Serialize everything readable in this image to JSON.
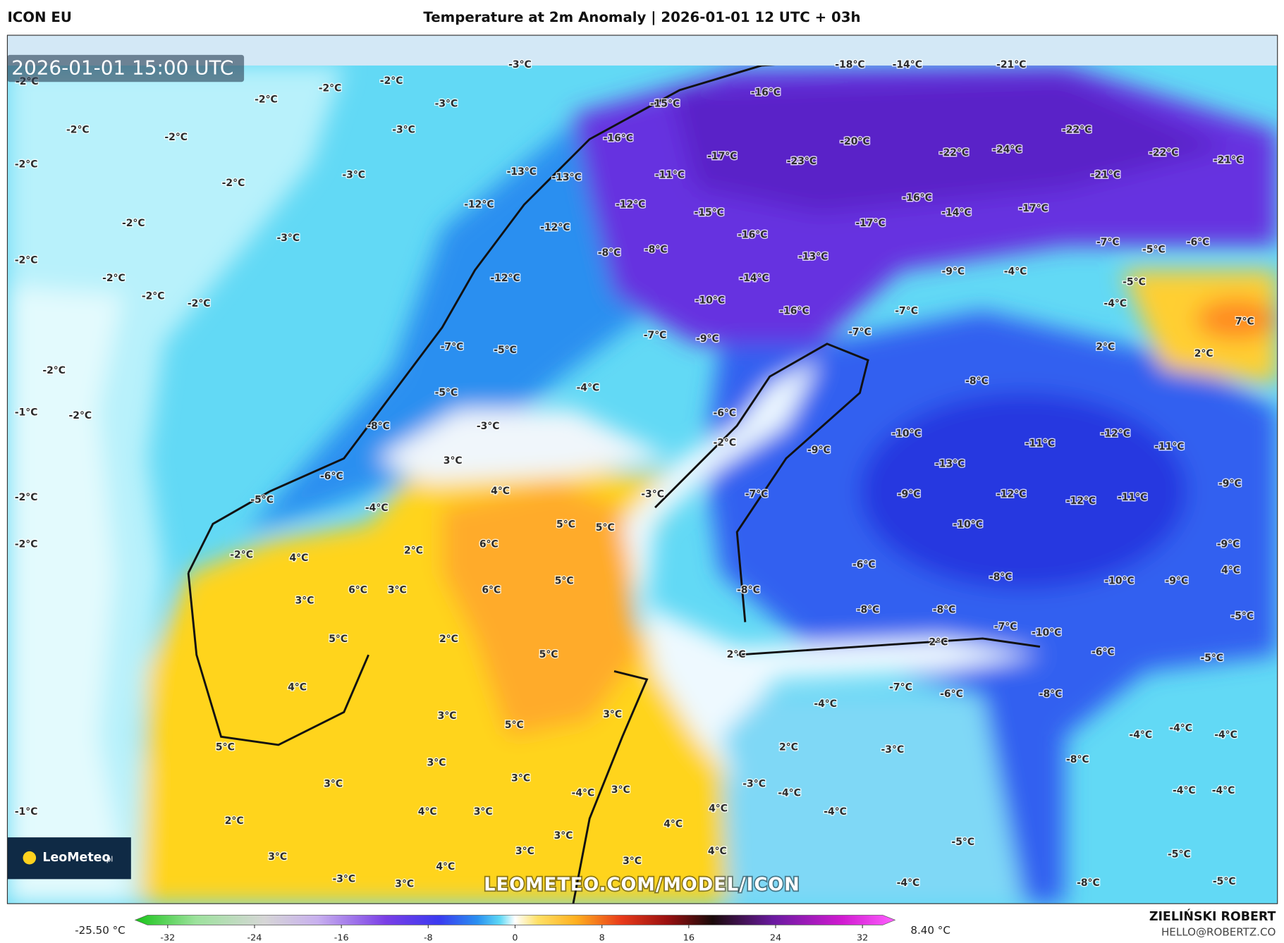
{
  "header": {
    "model": "ICON EU",
    "title": "Temperature at 2m Anomaly | 2026-01-01 12 UTC + 03h"
  },
  "map": {
    "timestamp": "2026-01-01 15:00 UTC",
    "watermark": "LEOMETEO.COM/MODEL/ICON",
    "logo": {
      "name": "LeoMeteo",
      "suffix": ".pl"
    },
    "labels": [
      "-2°C",
      "-2°C",
      "-2°C",
      "-2°C",
      "-2°C",
      "-2°C",
      "-2°C",
      "-2°C",
      "-2°C",
      "-2°C",
      "-2°C",
      "-2°C",
      "-2°C",
      "-2°C",
      "-2°C",
      "-2°C",
      "-2°C",
      "-1°C",
      "-1°C",
      "-3°C",
      "-3°C",
      "-3°C",
      "-3°C",
      "-3°C",
      "-18°C",
      "-14°C",
      "-21°C",
      "-15°C",
      "-16°C",
      "-16°C",
      "-20°C",
      "-22°C",
      "-24°C",
      "-22°C",
      "-22°C",
      "-21°C",
      "-13°C",
      "-13°C",
      "-11°C",
      "-17°C",
      "-23°C",
      "-21°C",
      "-12°C",
      "-12°C",
      "-15°C",
      "-16°C",
      "-14°C",
      "-17°C",
      "-12°C",
      "-16°C",
      "-17°C",
      "-7°C",
      "-5°C",
      "-6°C",
      "-8°C",
      "-8°C",
      "-13°C",
      "-9°C",
      "-4°C",
      "-12°C",
      "-14°C",
      "-5°C",
      "-10°C",
      "-16°C",
      "-7°C",
      "-4°C",
      "-7°C",
      "-9°C",
      "-7°C",
      "7°C",
      "-7°C",
      "-5°C",
      "2°C",
      "2°C",
      "-8°C",
      "-4°C",
      "-5°C",
      "-6°C",
      "-8°C",
      "-3°C",
      "-10°C",
      "-12°C",
      "-11°C",
      "-11°C",
      "-9°C",
      "-2°C",
      "-6°C",
      "3°C",
      "-13°C",
      "-5°C",
      "4°C",
      "-3°C",
      "-7°C",
      "-9°C",
      "-12°C",
      "-12°C",
      "-11°C",
      "-9°C",
      "-4°C",
      "5°C",
      "5°C",
      "-10°C",
      "6°C",
      "2°C",
      "-9°C",
      "-2°C",
      "4°C",
      "-6°C",
      "4°C",
      "6°C",
      "3°C",
      "6°C",
      "5°C",
      "-8°C",
      "-8°C",
      "-10°C",
      "-9°C",
      "3°C",
      "-8°C",
      "-8°C",
      "-5°C",
      "5°C",
      "2°C",
      "-7°C",
      "-10°C",
      "2°C",
      "-6°C",
      "5°C",
      "2°C",
      "-5°C",
      "4°C",
      "-7°C",
      "-6°C",
      "-8°C",
      "3°C",
      "5°C",
      "3°C",
      "-4°C",
      "5°C",
      "-4°C",
      "-4°C",
      "-4°C",
      "2°C",
      "-3°C",
      "-8°C",
      "3°C",
      "3°C",
      "3°C",
      "3°C",
      "-4°C",
      "-3°C",
      "-4°C",
      "-4°C",
      "-4°C",
      "4°C",
      "3°C",
      "2°C",
      "4°C",
      "-4°C",
      "4°C",
      "3°C",
      "-5°C",
      "3°C",
      "3°C",
      "4°C",
      "-5°C",
      "4°C",
      "3°C",
      "3°C",
      "-3°C",
      "-4°C",
      "-8°C",
      "-5°C"
    ]
  },
  "colorbar": {
    "lim": [
      -35,
      35
    ],
    "ticks": [
      -32,
      -24,
      -16,
      -8,
      0,
      8,
      16,
      24,
      32
    ],
    "min_label": "-25.50 °C",
    "max_label": "8.40 °C"
  },
  "footer": {
    "author": "ZIELIŃSKI ROBERT",
    "contact": "HELLO@ROBERTZ.CO"
  }
}
